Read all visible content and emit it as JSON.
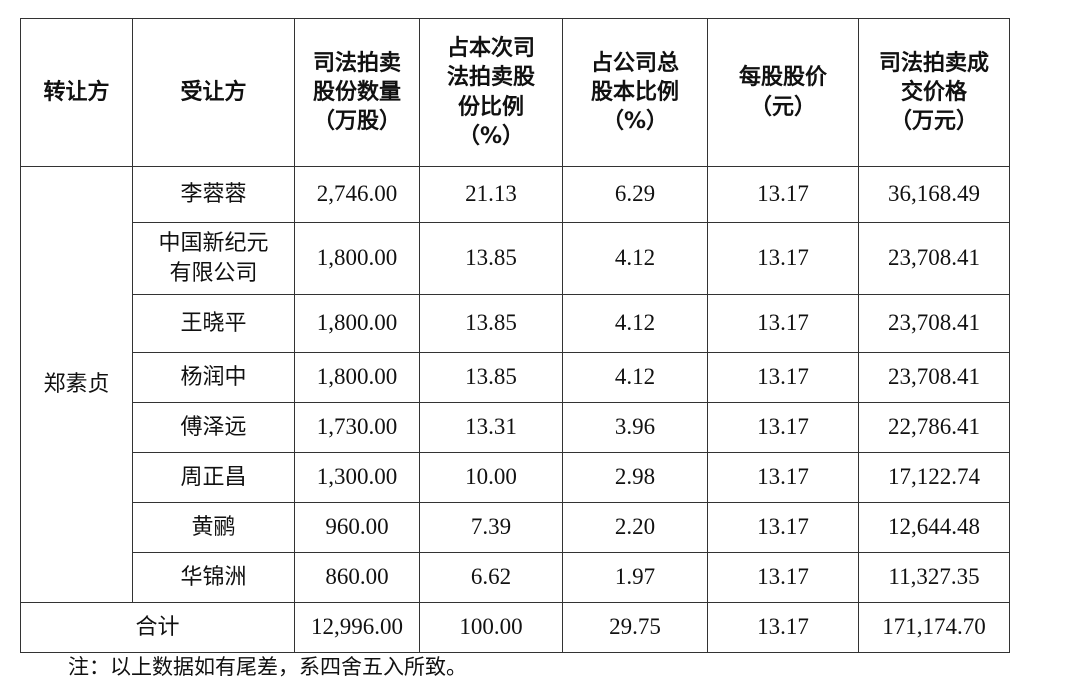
{
  "table": {
    "headers": [
      "转让方",
      "受让方",
      "司法拍卖股份数量（万股）",
      "占本次司法拍卖股份比例（%）",
      "占公司总股本比例（%）",
      "每股股价（元）",
      "司法拍卖成交价格（万元）"
    ],
    "header_lines": [
      [
        "转让方"
      ],
      [
        "受让方"
      ],
      [
        "司法拍卖",
        "股份数量",
        "（万股）"
      ],
      [
        "占本次司",
        "法拍卖股",
        "份比例",
        "（%）"
      ],
      [
        "占公司总",
        "股本比例",
        "（%）"
      ],
      [
        "每股股价",
        "（元）"
      ],
      [
        "司法拍卖成",
        "交价格",
        "（万元）"
      ]
    ],
    "transferor": "郑素贞",
    "rows": [
      {
        "transferee": [
          "李蓉蓉"
        ],
        "shares": "2,746.00",
        "pct_auction": "21.13",
        "pct_total": "6.29",
        "price": "13.17",
        "amount": "36,168.49"
      },
      {
        "transferee": [
          "中国新纪元",
          "有限公司"
        ],
        "shares": "1,800.00",
        "pct_auction": "13.85",
        "pct_total": "4.12",
        "price": "13.17",
        "amount": "23,708.41"
      },
      {
        "transferee": [
          "王晓平"
        ],
        "shares": "1,800.00",
        "pct_auction": "13.85",
        "pct_total": "4.12",
        "price": "13.17",
        "amount": "23,708.41"
      },
      {
        "transferee": [
          "杨润中"
        ],
        "shares": "1,800.00",
        "pct_auction": "13.85",
        "pct_total": "4.12",
        "price": "13.17",
        "amount": "23,708.41"
      },
      {
        "transferee": [
          "傅泽远"
        ],
        "shares": "1,730.00",
        "pct_auction": "13.31",
        "pct_total": "3.96",
        "price": "13.17",
        "amount": "22,786.41"
      },
      {
        "transferee": [
          "周正昌"
        ],
        "shares": "1,300.00",
        "pct_auction": "10.00",
        "pct_total": "2.98",
        "price": "13.17",
        "amount": "17,122.74"
      },
      {
        "transferee": [
          "黄鹂"
        ],
        "shares": "960.00",
        "pct_auction": "7.39",
        "pct_total": "2.20",
        "price": "13.17",
        "amount": "12,644.48"
      },
      {
        "transferee": [
          "华锦洲"
        ],
        "shares": "860.00",
        "pct_auction": "6.62",
        "pct_total": "1.97",
        "price": "13.17",
        "amount": "11,327.35"
      }
    ],
    "total": {
      "label": "合计",
      "shares": "12,996.00",
      "pct_auction": "100.00",
      "pct_total": "29.75",
      "price": "13.17",
      "amount": "171,174.70"
    }
  },
  "note": "注：以上数据如有尾差，系四舍五入所致。"
}
